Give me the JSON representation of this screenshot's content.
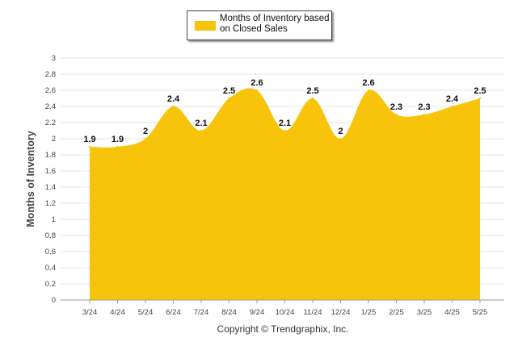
{
  "chart_data": {
    "type": "area",
    "categories": [
      "3/24",
      "4/24",
      "5/24",
      "6/24",
      "7/24",
      "8/24",
      "9/24",
      "10/24",
      "11/24",
      "12/24",
      "1/25",
      "2/25",
      "3/25",
      "4/25",
      "5/25"
    ],
    "series": [
      {
        "name": "Months of Inventory based on Closed Sales",
        "values": [
          1.9,
          1.9,
          2,
          2.4,
          2.1,
          2.5,
          2.6,
          2.1,
          2.5,
          2,
          2.6,
          2.3,
          2.3,
          2.4,
          2.5
        ],
        "color": "#f7c40b"
      }
    ],
    "data_labels": [
      "1.9",
      "1.9",
      "2",
      "2.4",
      "2.1",
      "2.5",
      "2.6",
      "2.1",
      "2.5",
      "2",
      "2.6",
      "2.3",
      "2.3",
      "2.4",
      "2.5"
    ],
    "ylabel": "Months of Inventory",
    "xlabel": "",
    "ylim": [
      0,
      3
    ],
    "yticks": [
      "0",
      "0.2",
      "0.4",
      "0.6",
      "0.8",
      "1",
      "1.2",
      "1.4",
      "1.6",
      "1.8",
      "2",
      "2.2",
      "2.4",
      "2.6",
      "2.8",
      "3"
    ],
    "grid": true,
    "legend_position": "top-center"
  },
  "legend": {
    "label": "Months of Inventory based\non Closed Sales",
    "swatch_color": "#f7c40b"
  },
  "footer": {
    "credit": "Copyright © Trendgraphix, Inc."
  }
}
